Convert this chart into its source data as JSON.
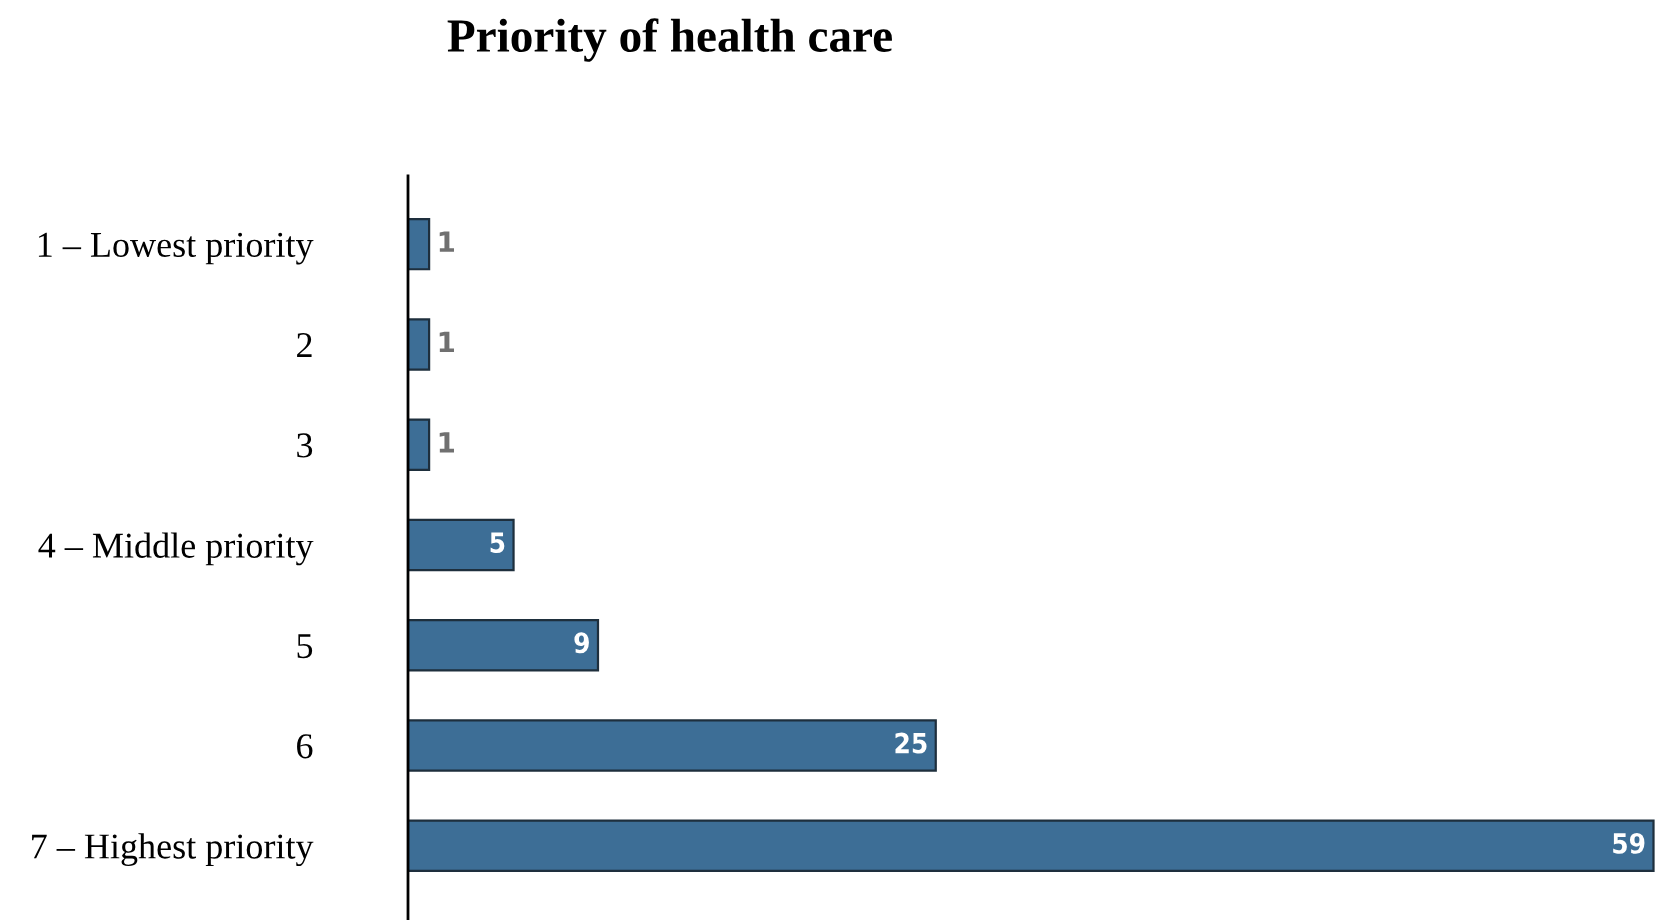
{
  "chart_data": {
    "type": "bar",
    "title": "Priority of health care",
    "orientation": "horizontal",
    "categories": [
      "1 – Lowest priority",
      "2",
      "3",
      "4 – Middle priority",
      "5",
      "6",
      "7 – Highest priority"
    ],
    "values": [
      1,
      1,
      1,
      5,
      9,
      25,
      59
    ],
    "color": "#3d6e96",
    "data_labels": true,
    "grid": false,
    "legend": false
  }
}
